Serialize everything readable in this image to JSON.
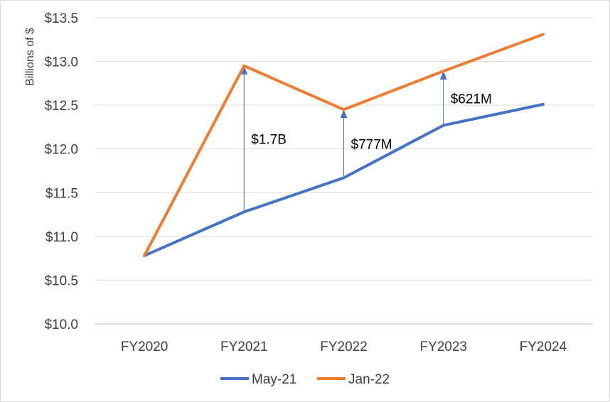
{
  "chart_data": {
    "type": "line",
    "title": "",
    "xlabel": "",
    "ylabel": "Billions of $",
    "categories": [
      "FY2020",
      "FY2021",
      "FY2022",
      "FY2023",
      "FY2024"
    ],
    "ylim": [
      10.0,
      13.5
    ],
    "ytick_labels": [
      "$10.0",
      "$10.5",
      "$11.0",
      "$11.5",
      "$12.0",
      "$12.5",
      "$13.0",
      "$13.5"
    ],
    "grid": true,
    "legend_position": "bottom",
    "series": [
      {
        "name": "May-21",
        "color": "#4472c4",
        "values": [
          10.78,
          11.28,
          11.67,
          12.27,
          12.51
        ]
      },
      {
        "name": "Jan-22",
        "color": "#ed7d31",
        "values": [
          10.78,
          12.95,
          12.45,
          12.89,
          13.31
        ]
      }
    ],
    "annotations": [
      {
        "category": "FY2021",
        "text": "$1.7B",
        "from": 11.28,
        "to": 12.95
      },
      {
        "category": "FY2022",
        "text": "$777M",
        "from": 11.67,
        "to": 12.45
      },
      {
        "category": "FY2023",
        "text": "$621M",
        "from": 12.27,
        "to": 12.89
      }
    ]
  }
}
